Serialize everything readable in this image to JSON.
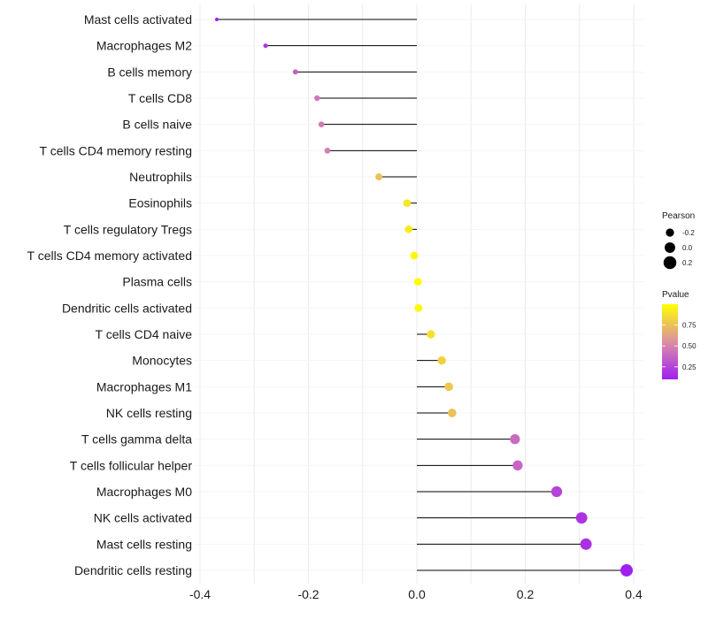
{
  "chart_data": {
    "type": "lollipop",
    "xlabel": "",
    "ylabel": "",
    "xlim": [
      -0.41,
      0.42
    ],
    "xticks": [
      -0.4,
      -0.2,
      0.0,
      0.2,
      0.4
    ],
    "xtick_labels": [
      "-0.4",
      "-0.2",
      "0.0",
      "0.2",
      "0.4"
    ],
    "categories": [
      "Mast cells activated",
      "Macrophages M2",
      "B cells memory",
      "T cells CD8",
      "B cells naive",
      "T cells CD4 memory resting",
      "Neutrophils",
      "Eosinophils",
      "T cells regulatory  Tregs ",
      "T cells CD4 memory activated",
      "Plasma cells",
      "Dendritic cells activated",
      "T cells CD4 naive",
      "Monocytes",
      "Macrophages M1",
      "NK cells resting",
      "T cells gamma delta",
      "T cells follicular helper",
      "Macrophages M0",
      "NK cells activated",
      "Mast cells resting",
      "Dendritic cells resting"
    ],
    "pearson": [
      -0.369,
      -0.279,
      -0.224,
      -0.184,
      -0.176,
      -0.165,
      -0.07,
      -0.018,
      -0.015,
      -0.005,
      0.002,
      0.003,
      0.026,
      0.046,
      0.059,
      0.065,
      0.181,
      0.186,
      0.258,
      0.304,
      0.312,
      0.387
    ],
    "pvalue": [
      0.1,
      0.2,
      0.35,
      0.45,
      0.46,
      0.48,
      0.75,
      0.9,
      0.92,
      0.97,
      0.99,
      0.98,
      0.88,
      0.82,
      0.78,
      0.75,
      0.4,
      0.38,
      0.25,
      0.18,
      0.17,
      0.08
    ],
    "legend": {
      "size_title": "Pearson",
      "size_labels": [
        "-0.2",
        "0.0",
        "0.2"
      ],
      "size_values": [
        -0.2,
        0.0,
        0.2
      ],
      "color_title": "Pvalue",
      "color_labels": [
        "0.75",
        "0.50",
        "0.25"
      ],
      "color_values": [
        0.75,
        0.5,
        0.25
      ],
      "color_range": [
        0.1,
        1.0
      ],
      "color_low": "#A020F0",
      "color_mid": "#D784B0",
      "color_high": "#FFFF00",
      "placement": "right"
    }
  }
}
